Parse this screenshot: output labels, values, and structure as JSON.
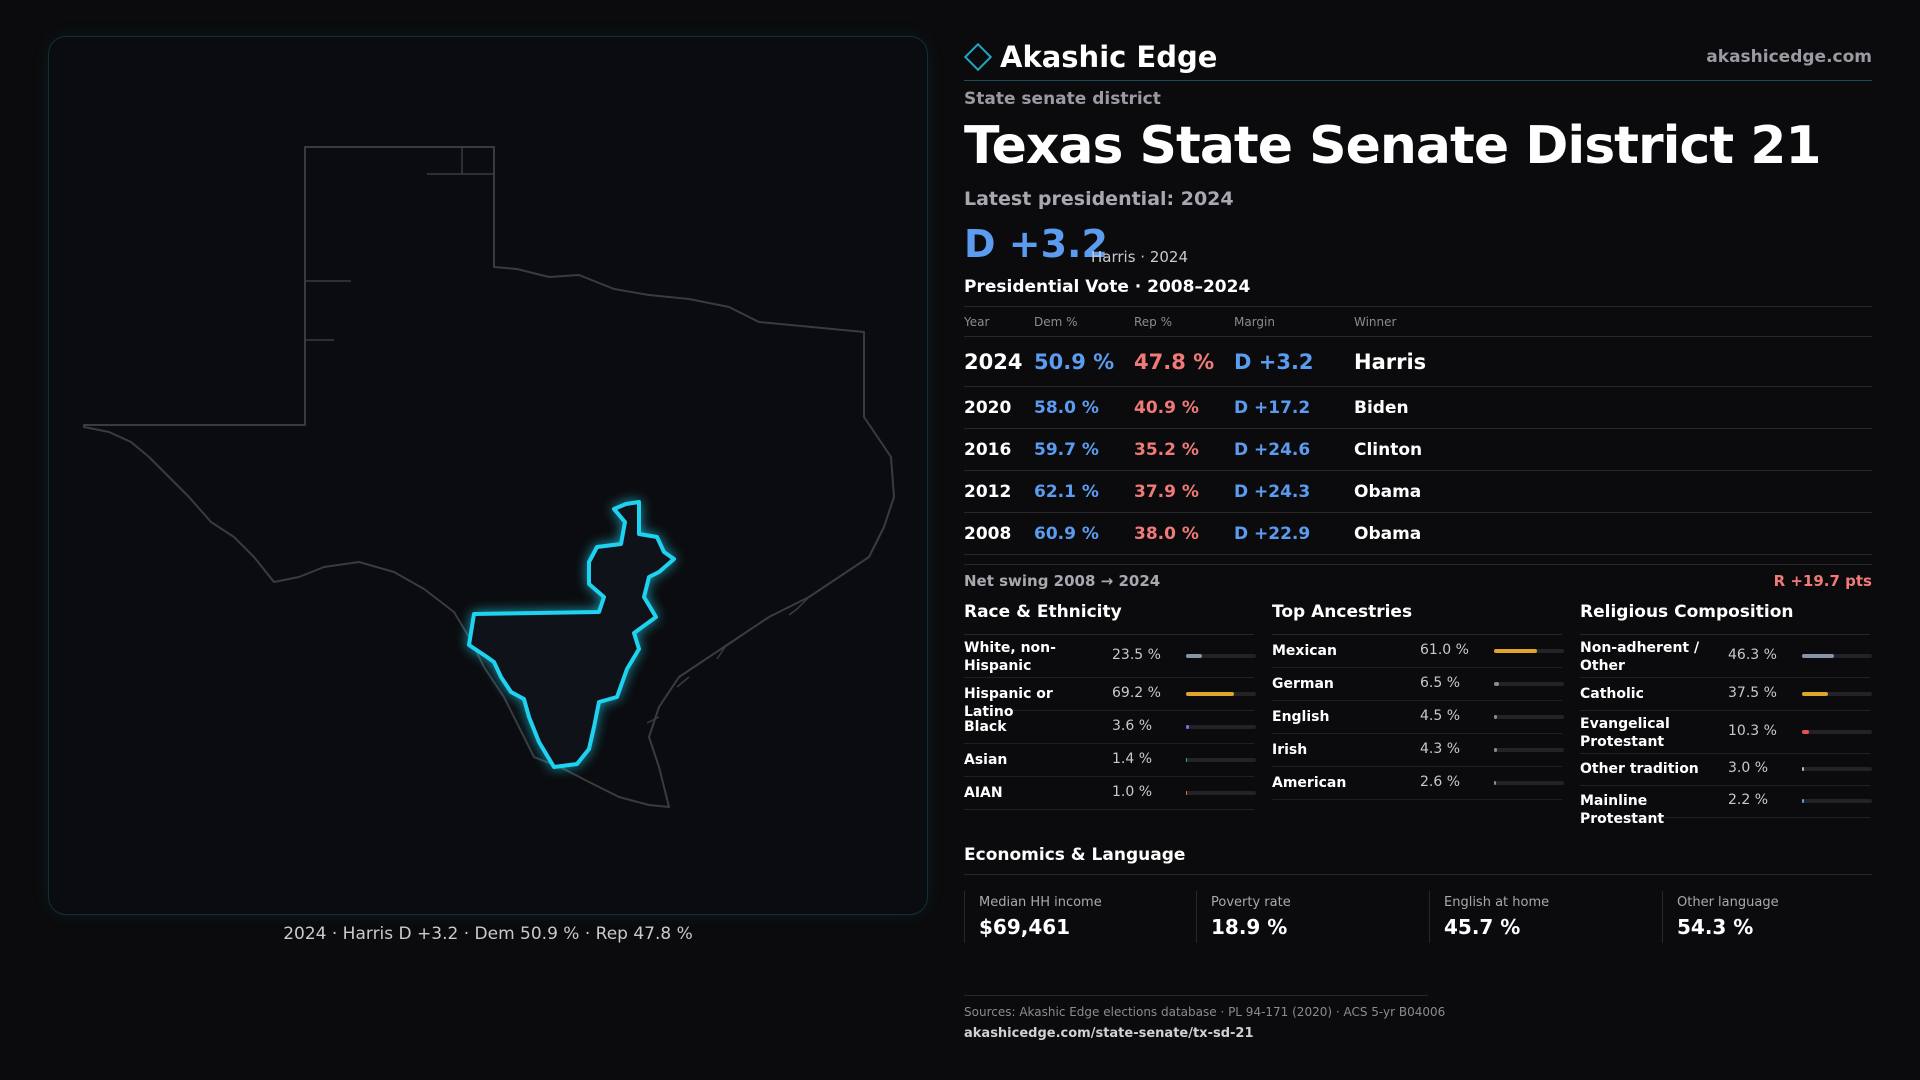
{
  "brand": {
    "name": "Akashic Edge",
    "url": "akashicedge.com"
  },
  "district": {
    "kind": "State senate district",
    "title": "Texas  State Senate District 21",
    "latest_label": "Latest presidential: 2024",
    "margin": "D +3.2",
    "margin_sub": "Harris · 2024"
  },
  "map": {
    "caption": "2024 · Harris D +3.2 · Dem 50.9 % · Rep 47.8 %",
    "highlight_color": "#1fd3f0"
  },
  "vote": {
    "title": "Presidential Vote · 2008–2024",
    "headers": {
      "year": "Year",
      "dem": "Dem %",
      "rep": "Rep %",
      "margin": "Margin",
      "winner": "Winner"
    },
    "rows": [
      {
        "year": "2024",
        "dem": "50.9 %",
        "rep": "47.8 %",
        "margin": "D +3.2",
        "winner": "Harris"
      },
      {
        "year": "2020",
        "dem": "58.0 %",
        "rep": "40.9 %",
        "margin": "D +17.2",
        "winner": "Biden"
      },
      {
        "year": "2016",
        "dem": "59.7 %",
        "rep": "35.2 %",
        "margin": "D +24.6",
        "winner": "Clinton"
      },
      {
        "year": "2012",
        "dem": "62.1 %",
        "rep": "37.9 %",
        "margin": "D +24.3",
        "winner": "Obama"
      },
      {
        "year": "2008",
        "dem": "60.9 %",
        "rep": "38.0 %",
        "margin": "D +22.9",
        "winner": "Obama"
      }
    ],
    "swing_label": "Net swing 2008 → 2024",
    "swing_value": "R +19.7 pts"
  },
  "race": {
    "title": "Race & Ethnicity",
    "items": [
      {
        "label": "White, non-Hispanic",
        "pct": "23.5 %",
        "value": 23.5,
        "color": "#8a94a8"
      },
      {
        "label": "Hispanic or Latino",
        "pct": "69.2 %",
        "value": 69.2,
        "color": "#e0a52a"
      },
      {
        "label": "Black",
        "pct": "3.6 %",
        "value": 3.6,
        "color": "#7a6cf0"
      },
      {
        "label": "Asian",
        "pct": "1.4 %",
        "value": 1.4,
        "color": "#2fb38a"
      },
      {
        "label": "AIAN",
        "pct": "1.0 %",
        "value": 1.0,
        "color": "#e07a3a"
      }
    ]
  },
  "ancestry": {
    "title": "Top Ancestries",
    "items": [
      {
        "label": "Mexican",
        "pct": "61.0 %",
        "value": 61.0,
        "color": "#e0a52a"
      },
      {
        "label": "German",
        "pct": "6.5 %",
        "value": 6.5,
        "color": "#8a8a92"
      },
      {
        "label": "English",
        "pct": "4.5 %",
        "value": 4.5,
        "color": "#8a8a92"
      },
      {
        "label": "Irish",
        "pct": "4.3 %",
        "value": 4.3,
        "color": "#8a8a92"
      },
      {
        "label": "American",
        "pct": "2.6 %",
        "value": 2.6,
        "color": "#8a8a92"
      }
    ]
  },
  "religion": {
    "title": "Religious Composition",
    "items": [
      {
        "label": "Non-adherent / Other",
        "pct": "46.3 %",
        "value": 46.3,
        "color": "#8a94a8"
      },
      {
        "label": "Catholic",
        "pct": "37.5 %",
        "value": 37.5,
        "color": "#e0a52a"
      },
      {
        "label": "Evangelical Protestant",
        "pct": "10.3 %",
        "value": 10.3,
        "color": "#e0564f"
      },
      {
        "label": "Other tradition",
        "pct": "3.0 %",
        "value": 3.0,
        "color": "#b8b8c0"
      },
      {
        "label": "Mainline Protestant",
        "pct": "2.2 %",
        "value": 2.2,
        "color": "#5b9cf0"
      }
    ]
  },
  "economics": {
    "title": "Economics & Language",
    "items": [
      {
        "label": "Median HH income",
        "value": "$69,461"
      },
      {
        "label": "Poverty rate",
        "value": "18.9 %"
      },
      {
        "label": "English at home",
        "value": "45.7 %"
      },
      {
        "label": "Other language",
        "value": "54.3 %"
      }
    ]
  },
  "sources": {
    "text": "Sources: Akashic Edge elections database · PL 94-171 (2020) · ACS 5-yr B04006",
    "url": "akashicedge.com/state-senate/tx-sd-21"
  }
}
